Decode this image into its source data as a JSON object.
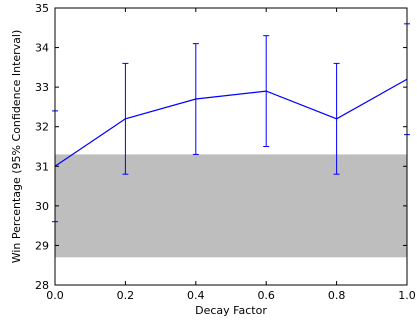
{
  "chart_data": {
    "type": "line",
    "xlabel": "Decay Factor",
    "ylabel": "Win Percentage (95% Confidence Interval)",
    "xlim": [
      0.0,
      1.0
    ],
    "ylim": [
      28,
      35
    ],
    "x_ticks": [
      "0.0",
      "0.2",
      "0.4",
      "0.6",
      "0.8",
      "1.0"
    ],
    "y_ticks": [
      "28",
      "29",
      "30",
      "31",
      "32",
      "33",
      "34",
      "35"
    ],
    "grid": false,
    "series": [
      {
        "color": "#0000ff",
        "x": [
          0.0,
          0.2,
          0.4,
          0.6,
          0.8,
          1.0
        ],
        "y": [
          31.0,
          32.2,
          32.7,
          32.9,
          32.2,
          33.2
        ],
        "err_low": [
          29.6,
          30.8,
          31.3,
          31.5,
          30.8,
          31.8
        ],
        "err_high": [
          32.4,
          33.6,
          34.1,
          34.3,
          33.6,
          34.6
        ]
      }
    ],
    "band": {
      "y_low": 28.7,
      "y_high": 31.3,
      "color": "#bebebe"
    }
  }
}
